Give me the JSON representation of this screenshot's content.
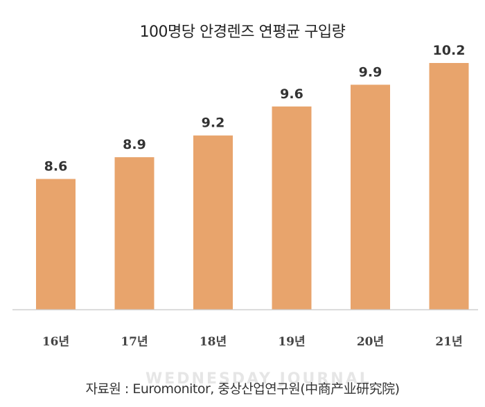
{
  "chart_data": {
    "type": "bar",
    "title": "100명당 안경렌즈 연평균 구입량",
    "categories": [
      "16년",
      "17년",
      "18년",
      "19년",
      "20년",
      "21년"
    ],
    "values": [
      8.6,
      8.9,
      9.2,
      9.6,
      9.9,
      10.2
    ],
    "value_labels": [
      "8.6",
      "8.9",
      "9.2",
      "9.6",
      "9.9",
      "10.2"
    ],
    "ylim": [
      6.8,
      10.2
    ],
    "grid": false,
    "bar_color": "#e8a46c",
    "axis_color": "#cfcfcf"
  },
  "watermark": "WEDNESDAY JOURNAL",
  "source_note": "자료원 : Euromonitor, 중상산업연구원(中商产业研究院)"
}
